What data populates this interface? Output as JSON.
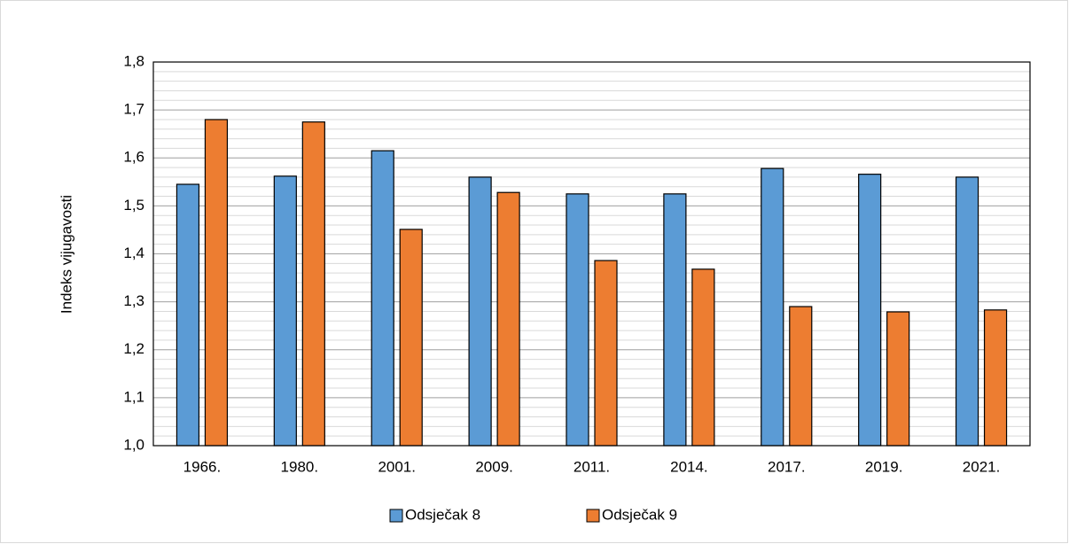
{
  "chart_data": {
    "type": "bar",
    "y_label": "Indeks vijugavosti",
    "categories": [
      "1966.",
      "1980.",
      "2001.",
      "2009.",
      "2011.",
      "2014.",
      "2017.",
      "2019.",
      "2021."
    ],
    "series": [
      {
        "name": "Odsječak 8",
        "color": "#5b9bd5",
        "values": [
          1.545,
          1.562,
          1.615,
          1.56,
          1.525,
          1.525,
          1.578,
          1.566,
          1.56
        ]
      },
      {
        "name": "Odsječak 9",
        "color": "#ed7d31",
        "values": [
          1.68,
          1.675,
          1.451,
          1.528,
          1.386,
          1.368,
          1.29,
          1.279,
          1.283
        ]
      }
    ],
    "ylim": [
      1.0,
      1.8
    ],
    "yticks": [
      {
        "value": 1.0,
        "label": "1,0"
      },
      {
        "value": 1.1,
        "label": "1,1"
      },
      {
        "value": 1.2,
        "label": "1,2"
      },
      {
        "value": 1.3,
        "label": "1,3"
      },
      {
        "value": 1.4,
        "label": "1,4"
      },
      {
        "value": 1.5,
        "label": "1,5"
      },
      {
        "value": 1.6,
        "label": "1,6"
      },
      {
        "value": 1.7,
        "label": "1,7"
      },
      {
        "value": 1.8,
        "label": "1,8"
      }
    ],
    "grid": true,
    "minor_grid": 0.02,
    "legend": "bottom"
  }
}
